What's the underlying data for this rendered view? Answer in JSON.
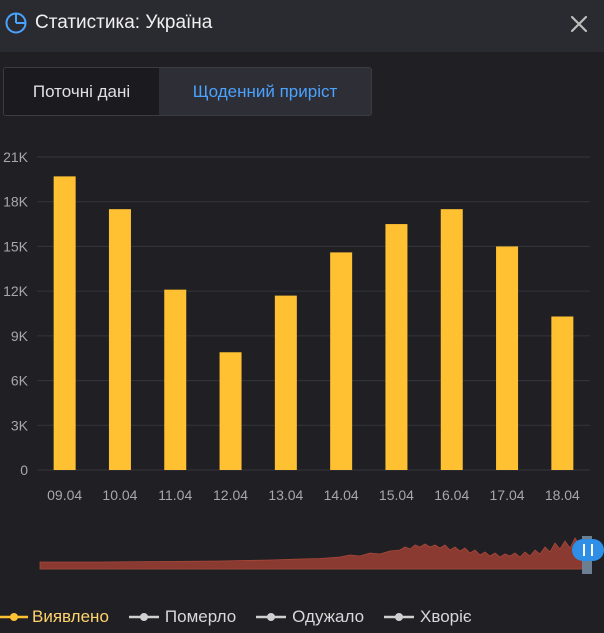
{
  "header": {
    "title": "Статистика: Україна"
  },
  "tabs": [
    {
      "label": "Поточні дані",
      "active": false
    },
    {
      "label": "Щоденний приріст",
      "active": true
    }
  ],
  "colors": {
    "bar": "#ffc132",
    "accent": "#4aa3ff",
    "navigator": "#8a3a30"
  },
  "chart_data": {
    "type": "bar",
    "categories": [
      "09.04",
      "10.04",
      "11.04",
      "12.04",
      "13.04",
      "14.04",
      "15.04",
      "16.04",
      "17.04",
      "18.04"
    ],
    "series": [
      {
        "name": "Виявлено",
        "values": [
          19700,
          17500,
          12100,
          7900,
          11700,
          14600,
          16500,
          17500,
          15000,
          10300
        ]
      }
    ],
    "ylim": [
      0,
      21000
    ],
    "yticks": [
      "0",
      "3K",
      "6K",
      "9K",
      "12K",
      "15K",
      "18K",
      "21K"
    ],
    "grid": true
  },
  "legend": [
    {
      "label": "Виявлено",
      "color": "#ffc132"
    },
    {
      "label": "Померло",
      "color": "#d0d0d0"
    },
    {
      "label": "Одужало",
      "color": "#d0d0d0"
    },
    {
      "label": "Хворіє",
      "color": "#d0d0d0"
    }
  ]
}
